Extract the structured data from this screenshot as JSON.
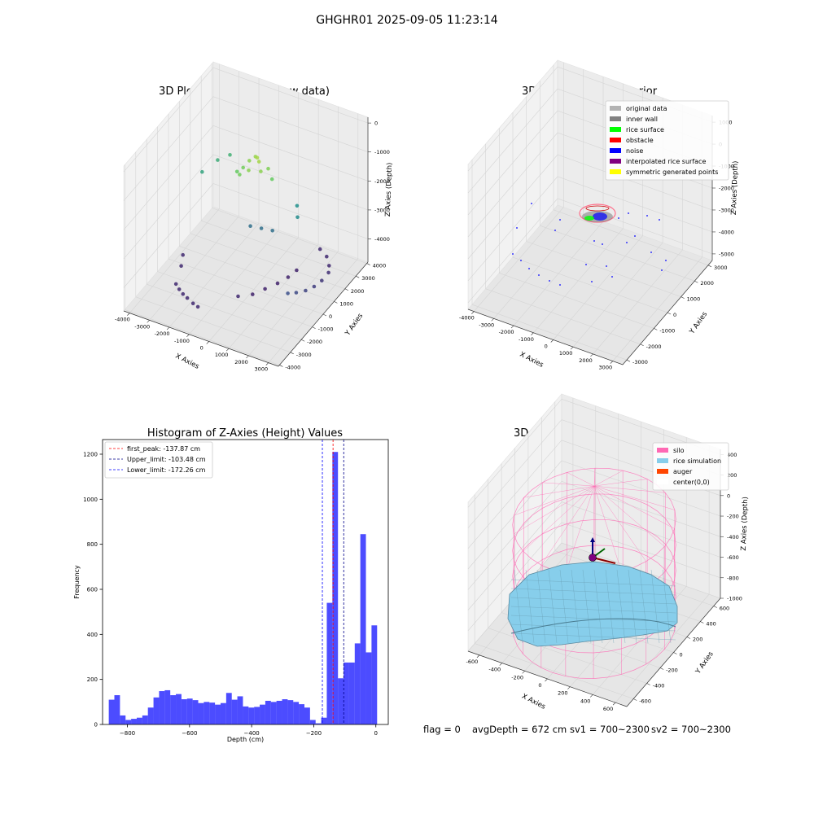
{
  "figure": {
    "suptitle": "GHGHR01 2025-09-05 11:23:14",
    "footer": {
      "flag": "flag = 0",
      "avg_depth": "avgDepth = 672 cm",
      "sv1": "sv1 = 700~2300",
      "sv2": "sv2 = 700~2300"
    }
  },
  "chart_data": [
    {
      "type": "scatter",
      "subtype": "3d",
      "title": "3D Plot of Silo Interior(row data)",
      "xlabel": "X Axies",
      "ylabel": "Y Axies",
      "zlabel": "Z Axies (Depth)",
      "xticks": [
        -4000,
        -3000,
        -2000,
        -1000,
        0,
        1000,
        2000,
        3000
      ],
      "yticks": [
        -4000,
        -3000,
        -2000,
        -1000,
        0,
        1000,
        2000,
        3000,
        4000
      ],
      "zticks": [
        -4000,
        -3000,
        -2000,
        -1000,
        0
      ],
      "xlim": [
        -4300,
        3500
      ],
      "ylim": [
        -4100,
        4100
      ],
      "zlim": [
        -4800,
        200
      ],
      "colormap": "viridis",
      "grid": true,
      "points": [
        {
          "x": -2600,
          "y": -2400,
          "z": -4200
        },
        {
          "x": -2300,
          "y": -2650,
          "z": -4200
        },
        {
          "x": -2000,
          "y": -2850,
          "z": -4200
        },
        {
          "x": -1700,
          "y": -3000,
          "z": -4200
        },
        {
          "x": -1300,
          "y": -3200,
          "z": -4200
        },
        {
          "x": -1000,
          "y": -3300,
          "z": -4200
        },
        {
          "x": -3300,
          "y": -500,
          "z": -4200
        },
        {
          "x": -3000,
          "y": -1200,
          "z": -4200
        },
        {
          "x": 1800,
          "y": 2800,
          "z": -4200
        },
        {
          "x": 2300,
          "y": 2500,
          "z": -4200
        },
        {
          "x": 2700,
          "y": 2000,
          "z": -4200
        },
        {
          "x": 3000,
          "y": 1400,
          "z": -4100
        },
        {
          "x": 3100,
          "y": 600,
          "z": -4000
        },
        {
          "x": 3100,
          "y": -100,
          "z": -3900
        },
        {
          "x": 3000,
          "y": -700,
          "z": -3800
        },
        {
          "x": 2800,
          "y": -1200,
          "z": -3700
        },
        {
          "x": 2600,
          "y": -1600,
          "z": -3600
        },
        {
          "x": 200,
          "y": -1800,
          "z": -4200
        },
        {
          "x": 600,
          "y": -1200,
          "z": -4300
        },
        {
          "x": 900,
          "y": -600,
          "z": -4300
        },
        {
          "x": 1200,
          "y": 0,
          "z": -4300
        },
        {
          "x": 1400,
          "y": 600,
          "z": -4300
        },
        {
          "x": 1500,
          "y": 1200,
          "z": -4300
        },
        {
          "x": -500,
          "y": 600,
          "z": -3000
        },
        {
          "x": 0,
          "y": 700,
          "z": -3000
        },
        {
          "x": 500,
          "y": 800,
          "z": -3000
        },
        {
          "x": -3100,
          "y": 900,
          "z": -1900
        },
        {
          "x": -2700,
          "y": 1600,
          "z": -1700
        },
        {
          "x": -2300,
          "y": 2000,
          "z": -1600
        },
        {
          "x": -900,
          "y": 100,
          "z": -1000
        },
        {
          "x": -700,
          "y": 300,
          "z": -900
        },
        {
          "x": -500,
          "y": 500,
          "z": -700
        },
        {
          "x": -300,
          "y": 700,
          "z": -600
        },
        {
          "x": -100,
          "y": 500,
          "z": -500
        },
        {
          "x": 100,
          "y": 300,
          "z": -500
        },
        {
          "x": 300,
          "y": 100,
          "z": -700
        },
        {
          "x": -600,
          "y": -200,
          "z": -900
        },
        {
          "x": -200,
          "y": -100,
          "z": -700
        },
        {
          "x": 400,
          "y": 600,
          "z": -800
        },
        {
          "x": 700,
          "y": 400,
          "z": -1000
        },
        {
          "x": 1600,
          "y": 1100,
          "z": -2400
        },
        {
          "x": 1300,
          "y": 1600,
          "z": -2300
        }
      ]
    },
    {
      "type": "scatter",
      "subtype": "3d",
      "title": "3D classify of Silo Interior",
      "xlabel": "X Axies",
      "ylabel": "Y Axies",
      "zlabel": "Z Axies (Depth)",
      "xticks": [
        -4000,
        -3000,
        -2000,
        -1000,
        0,
        1000,
        2000,
        3000
      ],
      "yticks": [
        -3000,
        -2000,
        -1000,
        0,
        1000,
        2000,
        3000
      ],
      "zticks": [
        -5000,
        -4000,
        -3000,
        -2000,
        -1000,
        0,
        1000
      ],
      "xlim": [
        -4300,
        3500
      ],
      "ylim": [
        -3300,
        3300
      ],
      "zlim": [
        -5300,
        1300
      ],
      "grid": true,
      "legend_position": "top-right",
      "legend": [
        {
          "label": "original data",
          "color": "#b3b3b3"
        },
        {
          "label": "inner wall",
          "color": "#808080"
        },
        {
          "label": "rice surface",
          "color": "#00ff00"
        },
        {
          "label": "obstacle",
          "color": "#ff0000"
        },
        {
          "label": "noise",
          "color": "#0000ff"
        },
        {
          "label": "interpolated rice surface",
          "color": "#800080"
        },
        {
          "label": "symmetric generated points",
          "color": "#ffff00"
        }
      ]
    },
    {
      "type": "histogram",
      "title": "Histogram of Z-Axies (Height) Values",
      "xlabel": "Depth (cm)",
      "ylabel": "Frequency",
      "xlim": [
        -880,
        40
      ],
      "ylim": [
        0,
        1265
      ],
      "xticks": [
        -800,
        -600,
        -400,
        -200,
        0
      ],
      "yticks": [
        0,
        200,
        400,
        600,
        800,
        1000,
        1200
      ],
      "bar_color": "#0000ff",
      "bar_alpha": 0.7,
      "bins": [
        {
          "start": -860,
          "end": -842,
          "count": 110
        },
        {
          "start": -842,
          "end": -824,
          "count": 130
        },
        {
          "start": -824,
          "end": -806,
          "count": 40
        },
        {
          "start": -806,
          "end": -788,
          "count": 20
        },
        {
          "start": -788,
          "end": -770,
          "count": 25
        },
        {
          "start": -770,
          "end": -752,
          "count": 30
        },
        {
          "start": -752,
          "end": -734,
          "count": 40
        },
        {
          "start": -734,
          "end": -716,
          "count": 75
        },
        {
          "start": -716,
          "end": -698,
          "count": 120
        },
        {
          "start": -698,
          "end": -680,
          "count": 148
        },
        {
          "start": -680,
          "end": -662,
          "count": 152
        },
        {
          "start": -662,
          "end": -644,
          "count": 130
        },
        {
          "start": -644,
          "end": -626,
          "count": 135
        },
        {
          "start": -626,
          "end": -608,
          "count": 112
        },
        {
          "start": -608,
          "end": -590,
          "count": 115
        },
        {
          "start": -590,
          "end": -572,
          "count": 108
        },
        {
          "start": -572,
          "end": -554,
          "count": 95
        },
        {
          "start": -554,
          "end": -536,
          "count": 100
        },
        {
          "start": -536,
          "end": -518,
          "count": 97
        },
        {
          "start": -518,
          "end": -500,
          "count": 88
        },
        {
          "start": -500,
          "end": -482,
          "count": 95
        },
        {
          "start": -482,
          "end": -464,
          "count": 140
        },
        {
          "start": -464,
          "end": -446,
          "count": 110
        },
        {
          "start": -446,
          "end": -428,
          "count": 125
        },
        {
          "start": -428,
          "end": -410,
          "count": 80
        },
        {
          "start": -410,
          "end": -392,
          "count": 75
        },
        {
          "start": -392,
          "end": -374,
          "count": 78
        },
        {
          "start": -374,
          "end": -356,
          "count": 88
        },
        {
          "start": -356,
          "end": -338,
          "count": 105
        },
        {
          "start": -338,
          "end": -320,
          "count": 100
        },
        {
          "start": -320,
          "end": -302,
          "count": 105
        },
        {
          "start": -302,
          "end": -284,
          "count": 112
        },
        {
          "start": -284,
          "end": -266,
          "count": 108
        },
        {
          "start": -266,
          "end": -248,
          "count": 100
        },
        {
          "start": -248,
          "end": -230,
          "count": 90
        },
        {
          "start": -230,
          "end": -212,
          "count": 75
        },
        {
          "start": -212,
          "end": -194,
          "count": 20
        },
        {
          "start": -194,
          "end": -176,
          "count": 5
        },
        {
          "start": -176,
          "end": -158,
          "count": 30
        },
        {
          "start": -158,
          "end": -140,
          "count": 540
        },
        {
          "start": -140,
          "end": -122,
          "count": 1210
        },
        {
          "start": -122,
          "end": -104,
          "count": 205
        },
        {
          "start": -104,
          "end": -86,
          "count": 275
        },
        {
          "start": -86,
          "end": -68,
          "count": 275
        },
        {
          "start": -68,
          "end": -50,
          "count": 360
        },
        {
          "start": -50,
          "end": -32,
          "count": 845
        },
        {
          "start": -32,
          "end": -14,
          "count": 320
        },
        {
          "start": -14,
          "end": 4,
          "count": 440
        }
      ],
      "vlines": [
        {
          "value": -137.87,
          "color": "#ff0000",
          "label": "first_peak: -137.87 cm"
        },
        {
          "value": -103.48,
          "color": "#00008b",
          "label": "Upper_limit: -103.48 cm"
        },
        {
          "value": -172.26,
          "color": "#0000ff",
          "label": "Lower_limit: -172.26 cm"
        }
      ],
      "legend_position": "top-left"
    },
    {
      "type": "surface",
      "subtype": "3d",
      "title": "3D simulation of Silo Interior",
      "xlabel": "X Axies",
      "ylabel": "Y Axies",
      "zlabel": "Z Axies (Depth)",
      "xticks": [
        -600,
        -400,
        -200,
        0,
        200,
        400,
        600
      ],
      "yticks": [
        -600,
        -400,
        -200,
        0,
        200,
        400,
        600
      ],
      "zticks": [
        -1000,
        -800,
        -600,
        -400,
        -200,
        0,
        200,
        400
      ],
      "xlim": [
        -700,
        700
      ],
      "ylim": [
        -700,
        700
      ],
      "zlim": [
        -1000,
        450
      ],
      "grid": true,
      "legend_position": "top-right",
      "legend": [
        {
          "label": "silo",
          "color": "#ff69b4"
        },
        {
          "label": "rice simulation",
          "color": "#87ceeb"
        },
        {
          "label": "auger",
          "color": "#ff4500"
        },
        {
          "label": "center(0,0)",
          "color": "#ffffff"
        }
      ]
    }
  ]
}
